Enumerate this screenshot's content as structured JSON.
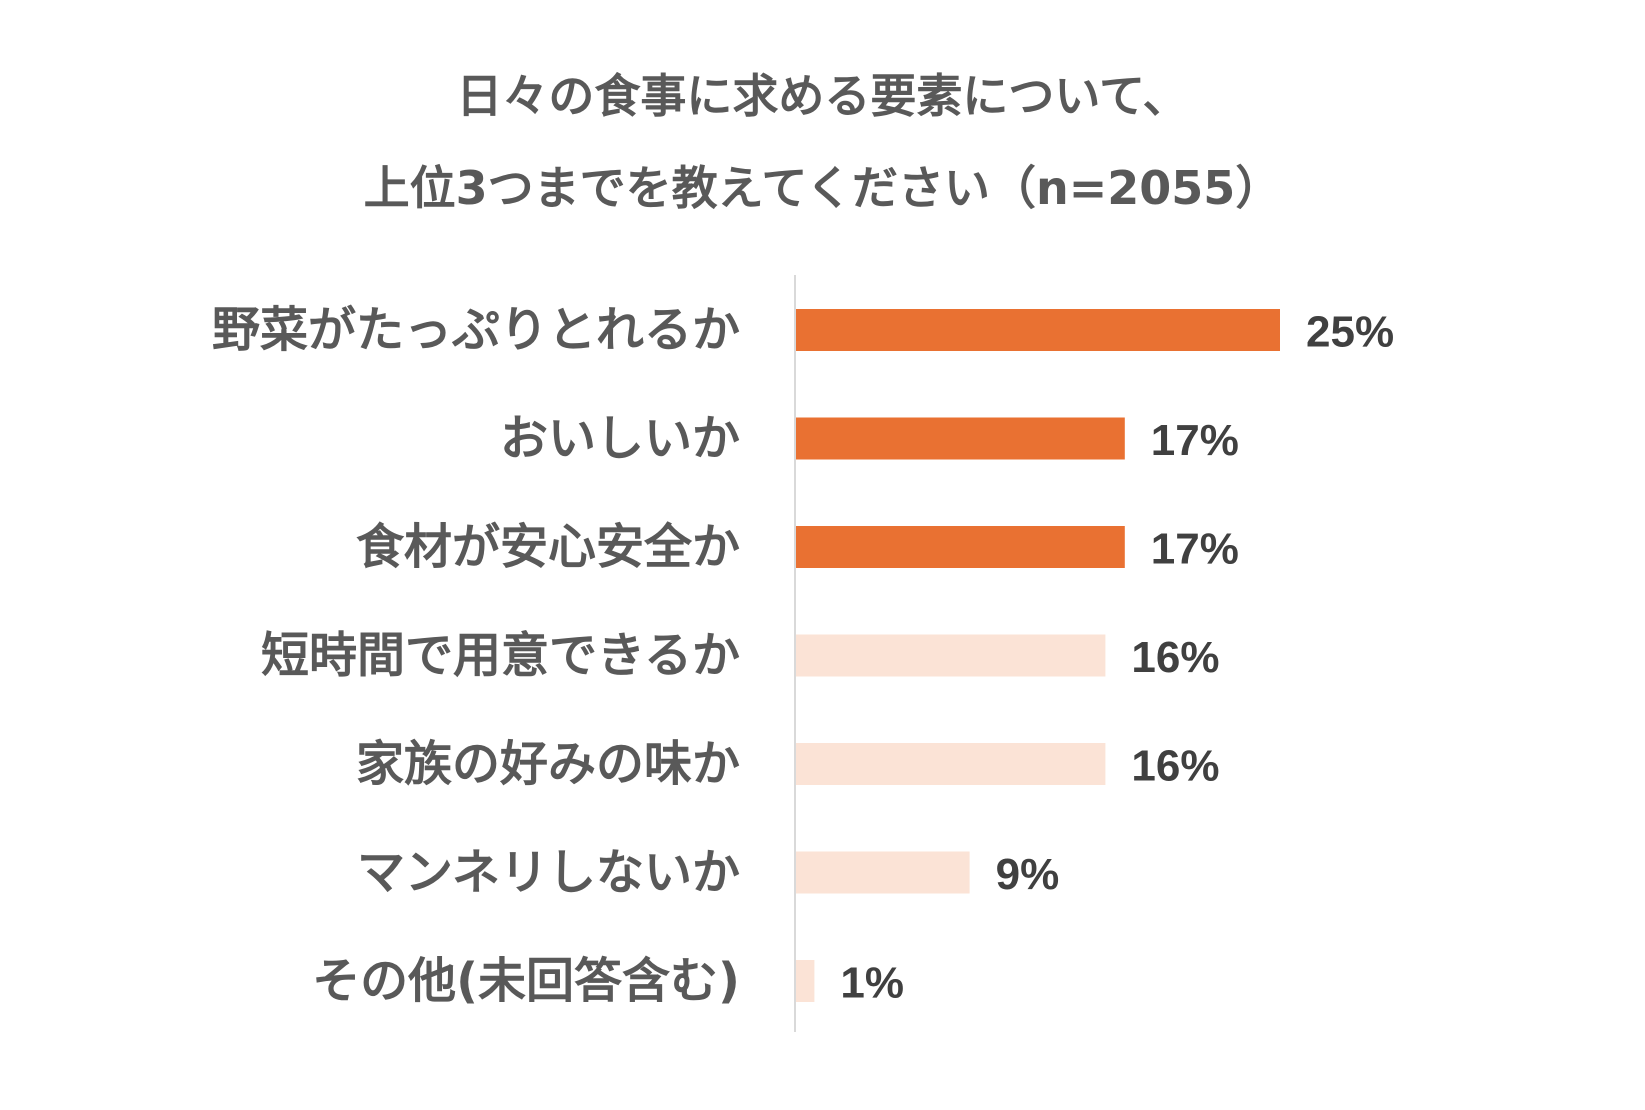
{
  "chart_data": {
    "type": "bar",
    "orientation": "horizontal",
    "title": "日々の食事に求める要素について、",
    "subtitle": "上位3つまでを教えてください（n=2055）",
    "categories": [
      "野菜がたっぷりとれるか",
      "おいしいか",
      "食材が安心安全か",
      "短時間で用意できるか",
      "家族の好みの味か",
      "マンネリしないか",
      "その他(未回答含む)"
    ],
    "values": [
      25,
      17,
      17,
      16,
      16,
      9,
      1
    ],
    "value_labels": [
      "25%",
      "17%",
      "17%",
      "16%",
      "16%",
      "9%",
      "1%"
    ],
    "value_unit": "%",
    "highlighted": [
      true,
      true,
      true,
      false,
      false,
      false,
      false
    ],
    "colors": {
      "highlight": "#E97132",
      "normal": "#FBE3D6",
      "axis": "#D9D9D9"
    },
    "xlim": [
      0,
      30
    ],
    "grid": false,
    "legend": "none"
  }
}
